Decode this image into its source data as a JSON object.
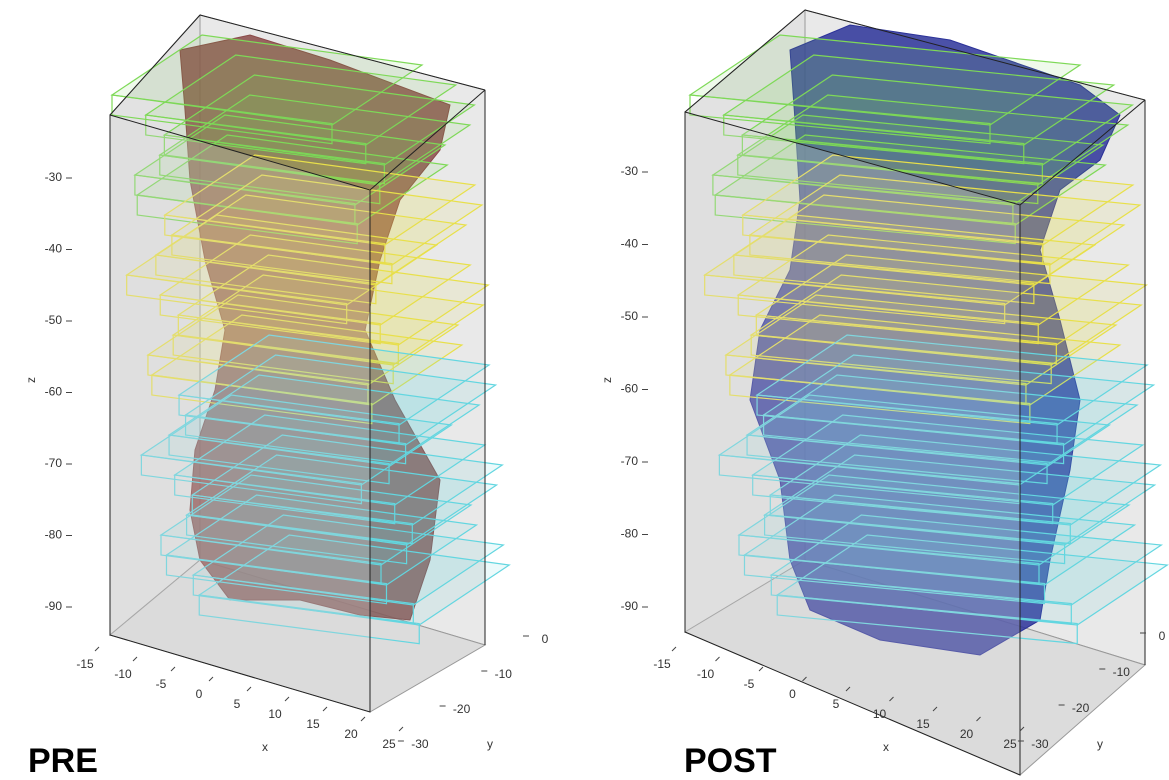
{
  "chart_data": [
    {
      "type": "3d-surface",
      "title": "PRE",
      "xlabel": "x",
      "ylabel": "y",
      "zlabel": "z",
      "color": "#8a4a48",
      "xlim": [
        -17,
        27
      ],
      "ylim": [
        -32,
        2
      ],
      "zlim": [
        -95,
        -22
      ],
      "xticks": [
        -15,
        -10,
        -5,
        0,
        5,
        10,
        15,
        20,
        25
      ],
      "yticks": [
        -30,
        -20,
        -10,
        0
      ],
      "zticks": [
        -90,
        -80,
        -70,
        -60,
        -50,
        -40,
        -30
      ]
    },
    {
      "type": "3d-surface",
      "title": "POST",
      "xlabel": "x",
      "ylabel": "y",
      "zlabel": "z",
      "color": "#2c3299",
      "xlim": [
        -17,
        27
      ],
      "ylim": [
        -32,
        2
      ],
      "zlim": [
        -95,
        -22
      ],
      "xticks": [
        -15,
        -10,
        -5,
        0,
        5,
        10,
        15,
        20,
        25
      ],
      "yticks": [
        -30,
        -20,
        -10,
        0
      ],
      "zticks": [
        -90,
        -80,
        -70,
        -60,
        -50,
        -40,
        -30
      ]
    }
  ]
}
